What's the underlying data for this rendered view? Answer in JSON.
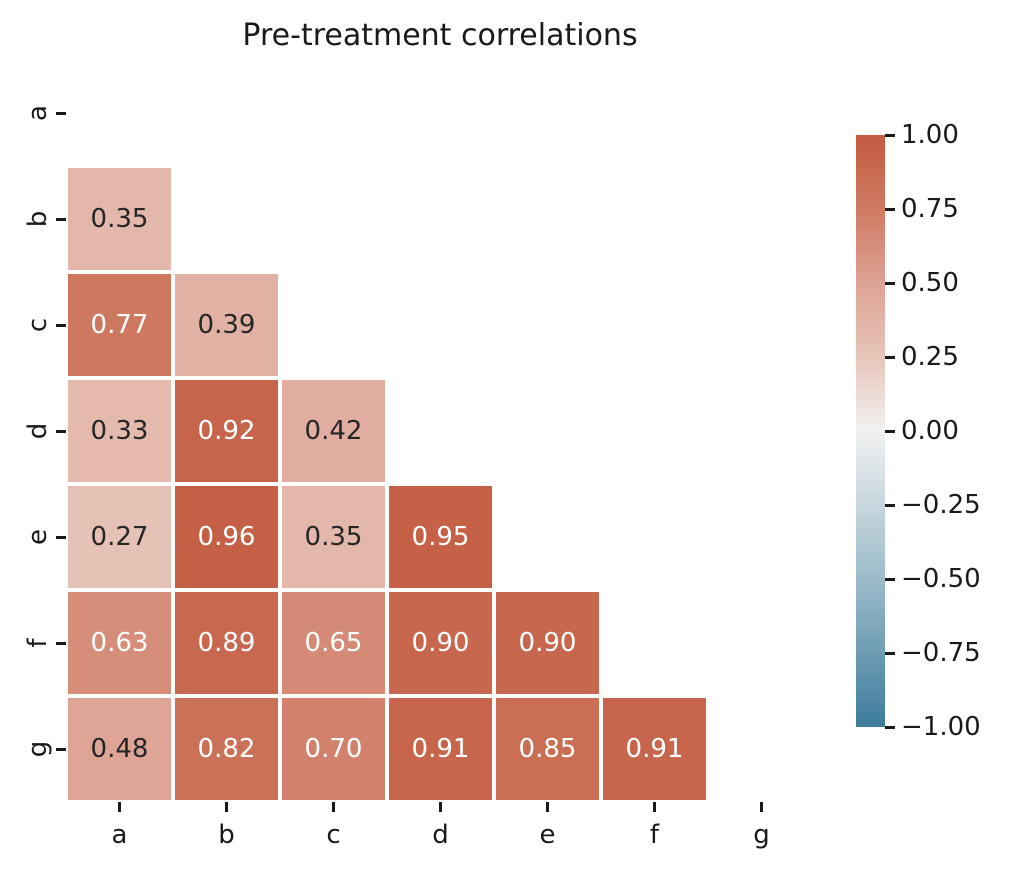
{
  "chart_data": {
    "type": "heatmap",
    "title": "Pre-treatment correlations",
    "x_tick_labels": [
      "a",
      "b",
      "c",
      "d",
      "e",
      "f",
      "g"
    ],
    "y_tick_labels": [
      "a",
      "b",
      "c",
      "d",
      "e",
      "f",
      "g"
    ],
    "mask": "upper triangle including diagonal is hidden (white)",
    "matrix": [
      [
        null,
        null,
        null,
        null,
        null,
        null,
        null
      ],
      [
        0.35,
        null,
        null,
        null,
        null,
        null,
        null
      ],
      [
        0.77,
        0.39,
        null,
        null,
        null,
        null,
        null
      ],
      [
        0.33,
        0.92,
        0.42,
        null,
        null,
        null,
        null
      ],
      [
        0.27,
        0.96,
        0.35,
        0.95,
        null,
        null,
        null
      ],
      [
        0.63,
        0.89,
        0.65,
        0.9,
        0.9,
        null,
        null
      ],
      [
        0.48,
        0.82,
        0.7,
        0.91,
        0.85,
        0.91,
        null
      ]
    ],
    "annotation_format": "2 decimals",
    "grid": false,
    "legend_position": "colorbar right",
    "colorbar": {
      "vmin": -1,
      "vmax": 1,
      "tick_values": [
        1.0,
        0.75,
        0.5,
        0.25,
        0.0,
        -0.25,
        -0.5,
        -0.75,
        -1.0
      ],
      "tick_labels": [
        "1.00",
        "0.75",
        "0.50",
        "0.25",
        "0.00",
        "−0.25",
        "−0.50",
        "−0.75",
        "−1.00"
      ]
    },
    "colormap": {
      "name": "diverging blue-white-red",
      "stops": [
        {
          "v": -1.0,
          "color": "#3e7c9c"
        },
        {
          "v": -0.5,
          "color": "#9cbcca"
        },
        {
          "v": 0.0,
          "color": "#f1f1f1"
        },
        {
          "v": 0.25,
          "color": "#e7c5b9"
        },
        {
          "v": 0.5,
          "color": "#dda294"
        },
        {
          "v": 0.75,
          "color": "#cf7a62"
        },
        {
          "v": 1.0,
          "color": "#c25b40"
        }
      ]
    },
    "colors": {
      "background": "#ffffff",
      "title_text": "#1a1a1a",
      "tick_text": "#1a1a1a",
      "annot_text_dark": "#262626",
      "annot_text_light": "#ffffff",
      "cell_gap": "#ffffff"
    }
  }
}
